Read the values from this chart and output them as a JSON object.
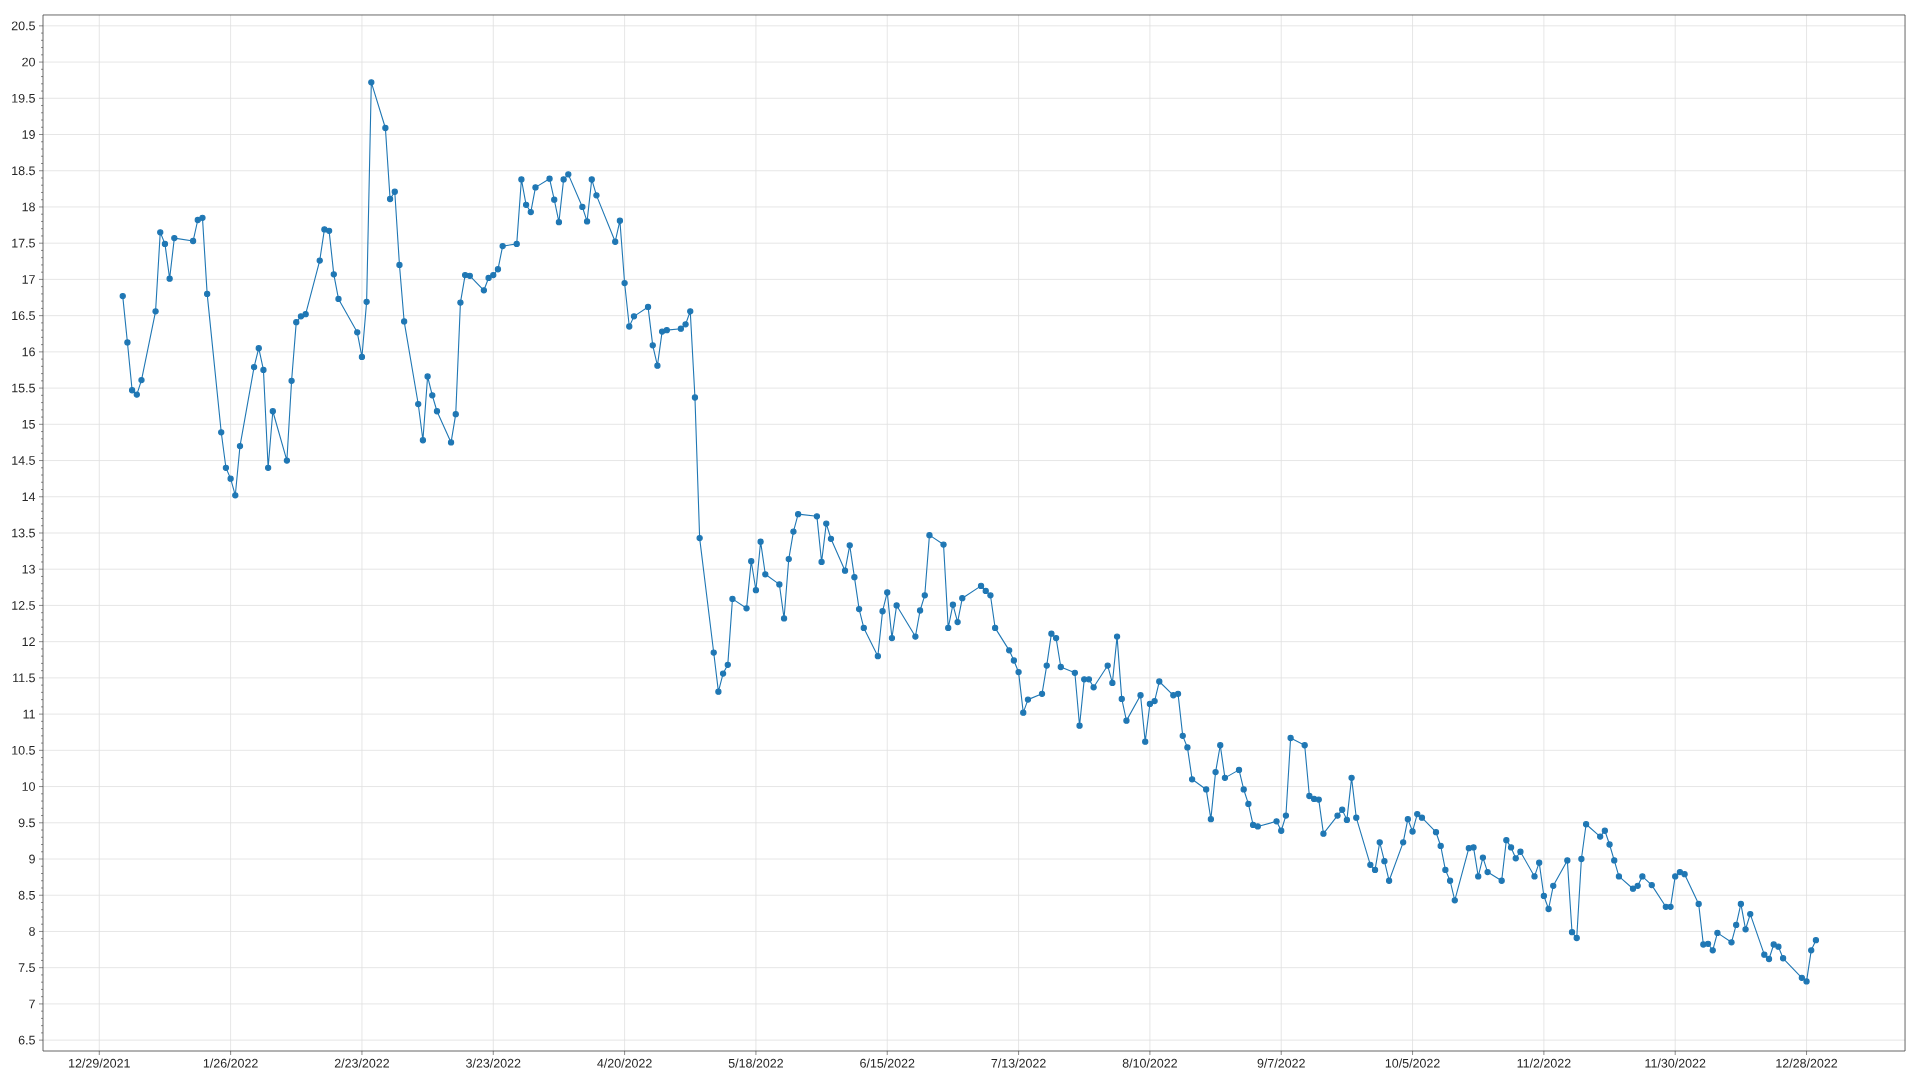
{
  "chart_data": {
    "type": "line",
    "marker": "circle",
    "line_style": "solid",
    "grid": true,
    "xlim": [
      "2021-12-17",
      "2023-01-18"
    ],
    "ylim": [
      6.35,
      20.65
    ],
    "xticks": [
      {
        "value": "2021-12-29",
        "label": "12/29/2021"
      },
      {
        "value": "2022-01-26",
        "label": "1/26/2022"
      },
      {
        "value": "2022-02-23",
        "label": "2/23/2022"
      },
      {
        "value": "2022-03-23",
        "label": "3/23/2022"
      },
      {
        "value": "2022-04-20",
        "label": "4/20/2022"
      },
      {
        "value": "2022-05-18",
        "label": "5/18/2022"
      },
      {
        "value": "2022-06-15",
        "label": "6/15/2022"
      },
      {
        "value": "2022-07-13",
        "label": "7/13/2022"
      },
      {
        "value": "2022-08-10",
        "label": "8/10/2022"
      },
      {
        "value": "2022-09-07",
        "label": "9/7/2022"
      },
      {
        "value": "2022-10-05",
        "label": "10/5/2022"
      },
      {
        "value": "2022-11-02",
        "label": "11/2/2022"
      },
      {
        "value": "2022-11-30",
        "label": "11/30/2022"
      },
      {
        "value": "2022-12-28",
        "label": "12/28/2022"
      }
    ],
    "yticks": [
      6.5,
      7,
      7.5,
      8,
      8.5,
      9,
      9.5,
      10,
      10.5,
      11,
      11.5,
      12,
      12.5,
      13,
      13.5,
      14,
      14.5,
      15,
      15.5,
      16,
      16.5,
      17,
      17.5,
      18,
      18.5,
      19,
      19.5,
      20,
      20.5
    ],
    "x": [
      "2022-01-03",
      "2022-01-04",
      "2022-01-05",
      "2022-01-06",
      "2022-01-07",
      "2022-01-10",
      "2022-01-11",
      "2022-01-12",
      "2022-01-13",
      "2022-01-14",
      "2022-01-18",
      "2022-01-19",
      "2022-01-20",
      "2022-01-21",
      "2022-01-24",
      "2022-01-25",
      "2022-01-26",
      "2022-01-27",
      "2022-01-28",
      "2022-01-31",
      "2022-02-01",
      "2022-02-02",
      "2022-02-03",
      "2022-02-04",
      "2022-02-07",
      "2022-02-08",
      "2022-02-09",
      "2022-02-10",
      "2022-02-11",
      "2022-02-14",
      "2022-02-15",
      "2022-02-16",
      "2022-02-17",
      "2022-02-18",
      "2022-02-22",
      "2022-02-23",
      "2022-02-24",
      "2022-02-25",
      "2022-02-28",
      "2022-03-01",
      "2022-03-02",
      "2022-03-03",
      "2022-03-04",
      "2022-03-07",
      "2022-03-08",
      "2022-03-09",
      "2022-03-10",
      "2022-03-11",
      "2022-03-14",
      "2022-03-15",
      "2022-03-16",
      "2022-03-17",
      "2022-03-18",
      "2022-03-21",
      "2022-03-22",
      "2022-03-23",
      "2022-03-24",
      "2022-03-25",
      "2022-03-28",
      "2022-03-29",
      "2022-03-30",
      "2022-03-31",
      "2022-04-01",
      "2022-04-04",
      "2022-04-05",
      "2022-04-06",
      "2022-04-07",
      "2022-04-08",
      "2022-04-11",
      "2022-04-12",
      "2022-04-13",
      "2022-04-14",
      "2022-04-18",
      "2022-04-19",
      "2022-04-20",
      "2022-04-21",
      "2022-04-22",
      "2022-04-25",
      "2022-04-26",
      "2022-04-27",
      "2022-04-28",
      "2022-04-29",
      "2022-05-02",
      "2022-05-03",
      "2022-05-04",
      "2022-05-05",
      "2022-05-06",
      "2022-05-09",
      "2022-05-10",
      "2022-05-11",
      "2022-05-12",
      "2022-05-13",
      "2022-05-16",
      "2022-05-17",
      "2022-05-18",
      "2022-05-19",
      "2022-05-20",
      "2022-05-23",
      "2022-05-24",
      "2022-05-25",
      "2022-05-26",
      "2022-05-27",
      "2022-05-31",
      "2022-06-01",
      "2022-06-02",
      "2022-06-03",
      "2022-06-06",
      "2022-06-07",
      "2022-06-08",
      "2022-06-09",
      "2022-06-10",
      "2022-06-13",
      "2022-06-14",
      "2022-06-15",
      "2022-06-16",
      "2022-06-17",
      "2022-06-21",
      "2022-06-22",
      "2022-06-23",
      "2022-06-24",
      "2022-06-27",
      "2022-06-28",
      "2022-06-29",
      "2022-06-30",
      "2022-07-01",
      "2022-07-05",
      "2022-07-06",
      "2022-07-07",
      "2022-07-08",
      "2022-07-11",
      "2022-07-12",
      "2022-07-13",
      "2022-07-14",
      "2022-07-15",
      "2022-07-18",
      "2022-07-19",
      "2022-07-20",
      "2022-07-21",
      "2022-07-22",
      "2022-07-25",
      "2022-07-26",
      "2022-07-27",
      "2022-07-28",
      "2022-07-29",
      "2022-08-01",
      "2022-08-02",
      "2022-08-03",
      "2022-08-04",
      "2022-08-05",
      "2022-08-08",
      "2022-08-09",
      "2022-08-10",
      "2022-08-11",
      "2022-08-12",
      "2022-08-15",
      "2022-08-16",
      "2022-08-17",
      "2022-08-18",
      "2022-08-19",
      "2022-08-22",
      "2022-08-23",
      "2022-08-24",
      "2022-08-25",
      "2022-08-26",
      "2022-08-29",
      "2022-08-30",
      "2022-08-31",
      "2022-09-01",
      "2022-09-02",
      "2022-09-06",
      "2022-09-07",
      "2022-09-08",
      "2022-09-09",
      "2022-09-12",
      "2022-09-13",
      "2022-09-14",
      "2022-09-15",
      "2022-09-16",
      "2022-09-19",
      "2022-09-20",
      "2022-09-21",
      "2022-09-22",
      "2022-09-23",
      "2022-09-26",
      "2022-09-27",
      "2022-09-28",
      "2022-09-29",
      "2022-09-30",
      "2022-10-03",
      "2022-10-04",
      "2022-10-05",
      "2022-10-06",
      "2022-10-07",
      "2022-10-10",
      "2022-10-11",
      "2022-10-12",
      "2022-10-13",
      "2022-10-14",
      "2022-10-17",
      "2022-10-18",
      "2022-10-19",
      "2022-10-20",
      "2022-10-21",
      "2022-10-24",
      "2022-10-25",
      "2022-10-26",
      "2022-10-27",
      "2022-10-28",
      "2022-10-31",
      "2022-11-01",
      "2022-11-02",
      "2022-11-03",
      "2022-11-04",
      "2022-11-07",
      "2022-11-08",
      "2022-11-09",
      "2022-11-10",
      "2022-11-11",
      "2022-11-14",
      "2022-11-15",
      "2022-11-16",
      "2022-11-17",
      "2022-11-18",
      "2022-11-21",
      "2022-11-22",
      "2022-11-23",
      "2022-11-25",
      "2022-11-28",
      "2022-11-29",
      "2022-11-30",
      "2022-12-01",
      "2022-12-02",
      "2022-12-05",
      "2022-12-06",
      "2022-12-07",
      "2022-12-08",
      "2022-12-09",
      "2022-12-12",
      "2022-12-13",
      "2022-12-14",
      "2022-12-15",
      "2022-12-16",
      "2022-12-19",
      "2022-12-20",
      "2022-12-21",
      "2022-12-22",
      "2022-12-23",
      "2022-12-27",
      "2022-12-28",
      "2022-12-29",
      "2022-12-30"
    ],
    "series": [
      {
        "color": "#1f77b4",
        "values": [
          16.77,
          16.13,
          15.47,
          15.41,
          15.61,
          16.56,
          17.65,
          17.49,
          17.01,
          17.57,
          17.53,
          17.82,
          17.85,
          16.8,
          14.89,
          14.4,
          14.25,
          14.02,
          14.7,
          15.79,
          16.05,
          15.75,
          14.4,
          15.18,
          14.5,
          15.6,
          16.41,
          16.49,
          16.52,
          17.26,
          17.69,
          17.67,
          17.07,
          16.73,
          16.27,
          15.93,
          16.69,
          19.72,
          19.09,
          18.11,
          18.21,
          17.2,
          16.42,
          15.28,
          14.78,
          15.66,
          15.4,
          15.18,
          14.75,
          15.14,
          16.68,
          17.06,
          17.05,
          16.85,
          17.02,
          17.06,
          17.14,
          17.46,
          17.49,
          18.38,
          18.03,
          17.93,
          18.27,
          18.39,
          18.1,
          17.79,
          18.38,
          18.45,
          18.0,
          17.8,
          18.38,
          18.16,
          17.52,
          17.81,
          16.95,
          16.35,
          16.49,
          16.62,
          16.09,
          15.81,
          16.28,
          16.3,
          16.32,
          16.38,
          16.56,
          15.37,
          13.43,
          11.85,
          11.31,
          11.56,
          11.68,
          12.59,
          12.46,
          13.11,
          12.71,
          13.38,
          12.93,
          12.79,
          12.32,
          13.14,
          13.52,
          13.76,
          13.73,
          13.1,
          13.63,
          13.42,
          12.98,
          13.33,
          12.89,
          12.45,
          12.19,
          11.8,
          12.42,
          12.68,
          12.05,
          12.5,
          12.07,
          12.43,
          12.64,
          13.47,
          13.34,
          12.19,
          12.51,
          12.27,
          12.6,
          12.77,
          12.7,
          12.64,
          12.19,
          11.88,
          11.74,
          11.58,
          11.02,
          11.2,
          11.28,
          11.67,
          12.11,
          12.05,
          11.65,
          11.57,
          10.84,
          11.48,
          11.48,
          11.37,
          11.67,
          11.43,
          12.07,
          11.21,
          10.91,
          11.26,
          10.62,
          11.14,
          11.18,
          11.45,
          11.26,
          11.28,
          10.7,
          10.54,
          10.1,
          9.96,
          9.55,
          10.2,
          10.57,
          10.12,
          10.23,
          9.96,
          9.76,
          9.47,
          9.45,
          9.52,
          9.39,
          9.6,
          10.67,
          10.57,
          9.87,
          9.83,
          9.82,
          9.35,
          9.6,
          9.68,
          9.54,
          10.12,
          9.57,
          8.92,
          8.85,
          9.23,
          8.97,
          8.7,
          9.23,
          9.55,
          9.38,
          9.62,
          9.57,
          9.37,
          9.18,
          8.85,
          8.7,
          8.43,
          9.15,
          9.16,
          8.76,
          9.02,
          8.82,
          8.7,
          9.26,
          9.16,
          9.01,
          9.1,
          8.76,
          8.95,
          8.49,
          8.31,
          8.63,
          8.98,
          7.99,
          7.91,
          9.0,
          9.48,
          9.31,
          9.39,
          9.2,
          8.98,
          8.76,
          8.59,
          8.63,
          8.76,
          8.64,
          8.34,
          8.34,
          8.76,
          8.82,
          8.79,
          8.38,
          7.82,
          7.83,
          7.74,
          7.98,
          7.85,
          8.09,
          8.38,
          8.03,
          8.24,
          7.68,
          7.62,
          7.82,
          7.79,
          7.63,
          7.36,
          7.31,
          7.74,
          7.88
        ]
      }
    ]
  }
}
